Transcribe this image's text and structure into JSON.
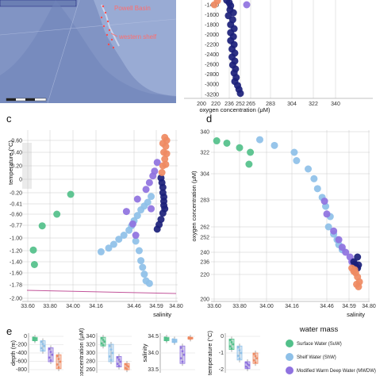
{
  "map": {
    "labels": [
      "Powell Basin",
      "western shelf"
    ]
  },
  "colors": {
    "SuW": "#52c08a",
    "ShW": "#8ec0e8",
    "MWDW": "#8f72e0",
    "dark": "#1b1f7a",
    "orange": "#ef8a62",
    "map_bg": "#8194c4"
  },
  "chart_data": [
    {
      "panel": "b",
      "type": "scatter",
      "xlabel": "oxygen concentration (μM)",
      "ylabel": "",
      "x_ticks": [
        "200",
        "220",
        "236",
        "252",
        "265",
        "283",
        "304",
        "322",
        "340"
      ],
      "y_ticks": [
        "-1400",
        "-1600",
        "-1800",
        "-2000",
        "-2200",
        "-2400",
        "-2600",
        "-2800",
        "-3000",
        "-3200"
      ],
      "xlim": [
        200,
        340
      ],
      "ylim": [
        -3200,
        -1300
      ],
      "series": [
        {
          "group": "orange",
          "points": [
            [
              222,
              -1320
            ],
            [
              218,
              -1400
            ]
          ]
        },
        {
          "group": "MWDW",
          "points": [
            [
              260,
              -1400
            ]
          ]
        },
        {
          "group": "dark",
          "points": [
            [
              233,
              -1310
            ],
            [
              236,
              -1360
            ],
            [
              238,
              -1420
            ],
            [
              237,
              -1500
            ],
            [
              242,
              -1560
            ],
            [
              235,
              -1620
            ],
            [
              241,
              -1700
            ],
            [
              238,
              -1800
            ],
            [
              243,
              -1880
            ],
            [
              238,
              -1960
            ],
            [
              242,
              -2040
            ],
            [
              238,
              -2120
            ],
            [
              243,
              -2200
            ],
            [
              240,
              -2290
            ],
            [
              244,
              -2370
            ],
            [
              240,
              -2450
            ],
            [
              244,
              -2530
            ],
            [
              241,
              -2610
            ],
            [
              245,
              -2690
            ],
            [
              243,
              -2770
            ],
            [
              246,
              -2860
            ],
            [
              244,
              -2940
            ],
            [
              248,
              -3020
            ],
            [
              250,
              -3100
            ],
            [
              252,
              -3180
            ]
          ]
        }
      ]
    },
    {
      "panel": "c",
      "type": "scatter",
      "xlabel": "salinity",
      "ylabel": "temperature (°C)",
      "x_ticks": [
        "33.60",
        "33.80",
        "34.00",
        "34.16",
        "34.46",
        "34.59",
        "34.80"
      ],
      "y_ticks": [
        "0.60",
        "0.40",
        "0.20",
        "0",
        "-0.20",
        "-0.41",
        "-0.60",
        "-0.77",
        "-1.00",
        "-1.20",
        "-1.40",
        "-1.60",
        "-1.78",
        "-2.00"
      ],
      "series": [
        {
          "group": "SuW",
          "points": [
            [
              33.98,
              -0.23
            ],
            [
              33.73,
              -0.78
            ],
            [
              33.86,
              -0.6
            ],
            [
              33.65,
              -1.19
            ],
            [
              33.66,
              -1.45
            ]
          ]
        },
        {
          "group": "ShW",
          "points": [
            [
              34.2,
              -1.22
            ],
            [
              34.26,
              -1.16
            ],
            [
              34.3,
              -1.1
            ],
            [
              34.34,
              -1.02
            ],
            [
              34.38,
              -0.95
            ],
            [
              34.42,
              -0.86
            ],
            [
              34.44,
              -0.78
            ],
            [
              34.46,
              -0.7
            ],
            [
              34.48,
              -0.62
            ],
            [
              34.5,
              -0.52
            ],
            [
              34.52,
              -0.45
            ],
            [
              34.54,
              -0.38
            ],
            [
              34.56,
              -0.27
            ],
            [
              34.47,
              -1.05
            ],
            [
              34.49,
              -1.2
            ],
            [
              34.5,
              -1.38
            ],
            [
              34.51,
              -1.5
            ],
            [
              34.52,
              -1.62
            ],
            [
              34.53,
              -1.72
            ],
            [
              34.55,
              -1.76
            ]
          ]
        },
        {
          "group": "MWDW",
          "points": [
            [
              34.4,
              -0.55
            ],
            [
              34.45,
              -0.75
            ],
            [
              34.47,
              -0.95
            ],
            [
              34.48,
              -0.32
            ],
            [
              34.53,
              -0.15
            ],
            [
              34.55,
              -0.05
            ],
            [
              34.57,
              0.05
            ],
            [
              34.58,
              0.12
            ],
            [
              34.56,
              -0.5
            ],
            [
              34.6,
              0.25
            ]
          ]
        },
        {
          "group": "dark",
          "points": [
            [
              34.64,
              0.02
            ],
            [
              34.65,
              -0.05
            ],
            [
              34.66,
              -0.12
            ],
            [
              34.66,
              -0.2
            ],
            [
              34.67,
              -0.28
            ],
            [
              34.67,
              -0.36
            ],
            [
              34.67,
              -0.44
            ],
            [
              34.68,
              -0.5
            ],
            [
              34.66,
              -0.58
            ],
            [
              34.64,
              -0.68
            ],
            [
              34.62,
              -0.76
            ],
            [
              34.6,
              -0.84
            ]
          ]
        },
        {
          "group": "orange",
          "points": [
            [
              34.66,
              0.55
            ],
            [
              34.68,
              0.65
            ],
            [
              34.69,
              0.5
            ],
            [
              34.67,
              0.4
            ],
            [
              34.68,
              0.3
            ],
            [
              34.66,
              0.2
            ],
            [
              34.65,
              0.1
            ],
            [
              34.69,
              0.22
            ],
            [
              34.7,
              0.38
            ],
            [
              34.7,
              0.6
            ]
          ]
        }
      ]
    },
    {
      "panel": "d",
      "type": "scatter",
      "xlabel": "salinity",
      "ylabel": "oxygen concentration (μM)",
      "x_ticks": [
        "33.60",
        "33.80",
        "34.00",
        "34.16",
        "34.46",
        "34.59",
        "34.80"
      ],
      "y_ticks": [
        "340",
        "322",
        "304",
        "283",
        "262",
        "252",
        "240",
        "236",
        "220",
        "200"
      ],
      "series": [
        {
          "group": "SuW",
          "points": [
            [
              33.62,
              332
            ],
            [
              33.7,
              330
            ],
            [
              33.8,
              326
            ],
            [
              33.88,
              322
            ],
            [
              33.87,
              312
            ]
          ]
        },
        {
          "group": "ShW",
          "points": [
            [
              33.95,
              333
            ],
            [
              34.05,
              328
            ],
            [
              34.18,
              322
            ],
            [
              34.2,
              315
            ],
            [
              34.3,
              308
            ],
            [
              34.35,
              300
            ],
            [
              34.38,
              292
            ],
            [
              34.42,
              285
            ],
            [
              34.45,
              278
            ],
            [
              34.48,
              270
            ],
            [
              34.47,
              262
            ],
            [
              34.5,
              255
            ],
            [
              34.52,
              250
            ],
            [
              34.53,
              246
            ],
            [
              34.55,
              242
            ]
          ]
        },
        {
          "group": "MWDW",
          "points": [
            [
              34.44,
              282
            ],
            [
              34.46,
              272
            ],
            [
              34.5,
              258
            ],
            [
              34.53,
              250
            ],
            [
              34.55,
              244
            ],
            [
              34.57,
              240
            ],
            [
              34.6,
              238
            ],
            [
              34.62,
              236
            ]
          ]
        },
        {
          "group": "dark",
          "points": [
            [
              34.64,
              236
            ],
            [
              34.65,
              233
            ],
            [
              34.66,
              231
            ],
            [
              34.67,
              229
            ],
            [
              34.68,
              228
            ],
            [
              34.69,
              232
            ],
            [
              34.68,
              238
            ]
          ]
        },
        {
          "group": "orange",
          "points": [
            [
              34.62,
              228
            ],
            [
              34.64,
              224
            ],
            [
              34.66,
              222
            ],
            [
              34.68,
              218
            ],
            [
              34.7,
              214
            ],
            [
              34.69,
              210
            ],
            [
              34.67,
              212
            ],
            [
              34.65,
              226
            ]
          ]
        }
      ]
    },
    {
      "panel": "e",
      "type": "box",
      "plots": [
        {
          "ylabel": "depth (m)",
          "y_ticks": [
            "0",
            "-200",
            "-400",
            "-600",
            "-800"
          ]
        },
        {
          "ylabel": "concentration (μM)",
          "y_ticks": [
            "340",
            "320",
            "300",
            "280",
            "260"
          ]
        },
        {
          "ylabel": "salinity",
          "y_ticks": [
            "34.5",
            "34.0",
            "33.5"
          ]
        },
        {
          "ylabel": "temperature (°C)",
          "y_ticks": [
            "0",
            "-1",
            "-2"
          ]
        }
      ]
    }
  ],
  "panel_labels": [
    "c",
    "d",
    "e"
  ],
  "legend": {
    "title": "water mass",
    "items": [
      {
        "label": "Surface Water (SuW)",
        "color": "#52c08a"
      },
      {
        "label": "Shelf Water (ShW)",
        "color": "#8ec0e8"
      },
      {
        "label": "Modified Warm Deep Water (MWDW)",
        "color": "#8f72e0"
      }
    ]
  }
}
